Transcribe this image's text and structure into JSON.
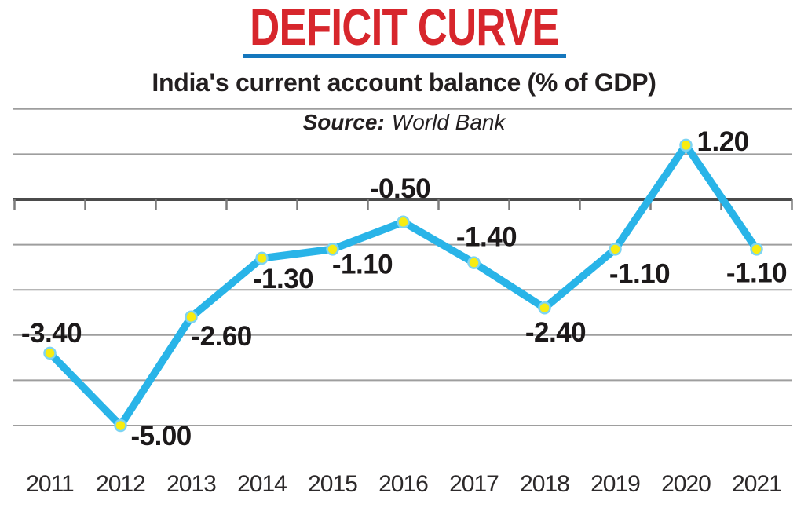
{
  "header": {
    "title": "DEFICIT CURVE",
    "subtitle": "India's current account balance (% of GDP)"
  },
  "colors": {
    "title_red": "#d7262c",
    "underline_blue": "#1577bd",
    "line_cyan": "#29b4e8",
    "marker_yellow": "#f7ec12",
    "marker_ring": "#7dd4f2",
    "gridline_gray": "#9e9e9e",
    "zero_axis_dark": "#4b4b4b",
    "tick_gray": "#7b7b7b",
    "label_black": "#1c191a",
    "year_gray": "#2c292a"
  },
  "chart_data": {
    "type": "line",
    "title": "DEFICIT CURVE",
    "subtitle": "India's current account balance (% of GDP)",
    "source_label": "Source:",
    "source_value": "World Bank",
    "categories": [
      "2011",
      "2012",
      "2013",
      "2014",
      "2015",
      "2016",
      "2017",
      "2018",
      "2019",
      "2020",
      "2021"
    ],
    "values": [
      -3.4,
      -5.0,
      -2.6,
      -1.3,
      -1.1,
      -0.5,
      -1.4,
      -2.4,
      -1.1,
      1.2,
      -1.1
    ],
    "point_labels": [
      "-3.40",
      "-5.00",
      "-2.60",
      "-1.30",
      "-1.10",
      "-0.50",
      "-1.40",
      "-2.40",
      "-1.10",
      "1.20",
      "-1.10"
    ],
    "xlabel": "",
    "ylabel": "",
    "ylim": [
      -5.5,
      2.5
    ],
    "gridline_values": [
      2,
      1,
      0,
      -1,
      -2,
      -3,
      -4,
      -5
    ],
    "grid": "horizontal",
    "legend": "none",
    "marker": "circle",
    "zero_axis_ticks": 12
  }
}
